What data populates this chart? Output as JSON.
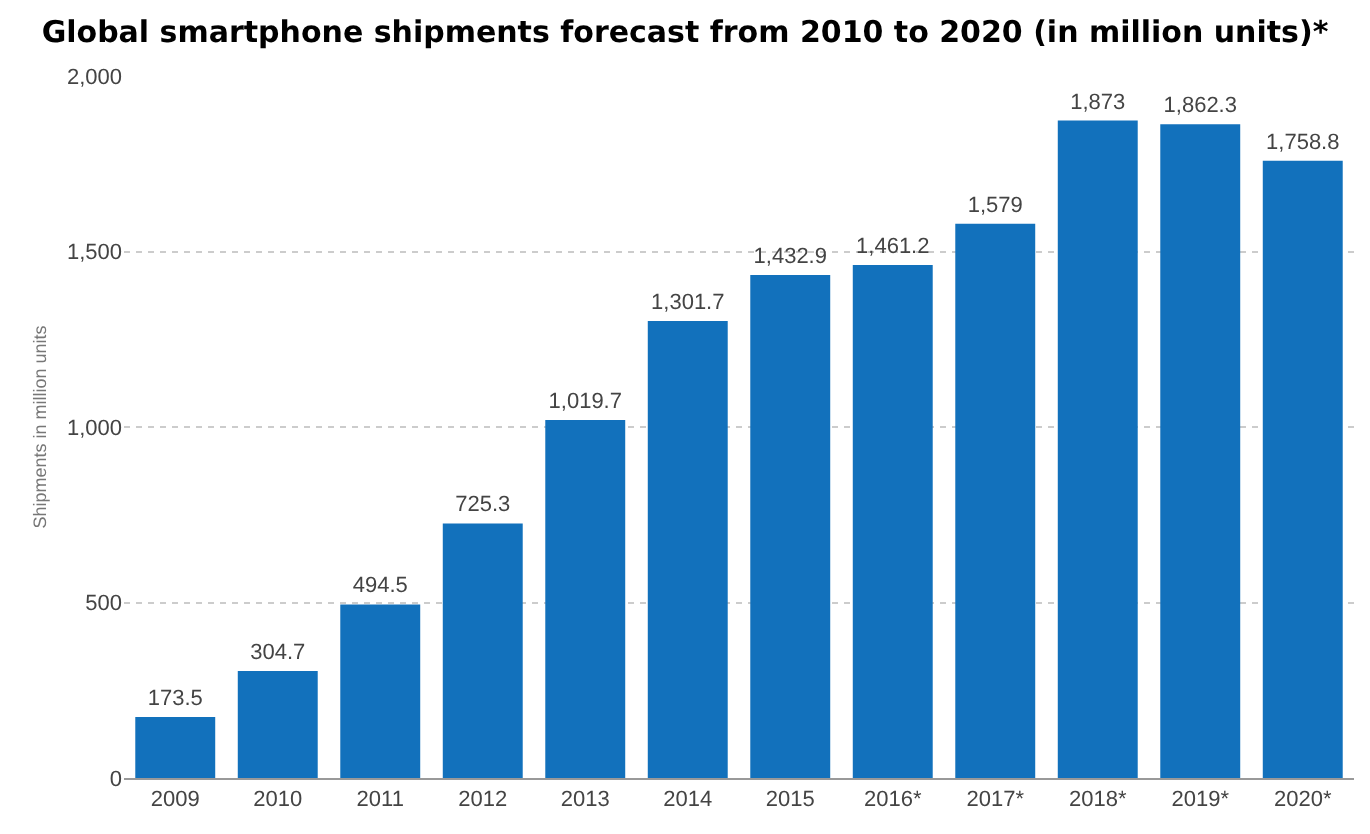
{
  "chart_data": {
    "type": "bar",
    "title": "Global smartphone shipments forecast from 2010 to 2020 (in million units)*",
    "ylabel": "Shipments in million units",
    "categories": [
      "2009",
      "2010",
      "2011",
      "2012",
      "2013",
      "2014",
      "2015",
      "2016*",
      "2017*",
      "2018*",
      "2019*",
      "2020*"
    ],
    "values": [
      173.5,
      304.7,
      494.5,
      725.3,
      1019.7,
      1301.7,
      1432.9,
      1461.2,
      1579,
      1873,
      1862.3,
      1758.8
    ],
    "value_labels": [
      "173.5",
      "304.7",
      "494.5",
      "725.3",
      "1,019.7",
      "1,301.7",
      "1,432.9",
      "1,461.2",
      "1,579",
      "1,873",
      "1,862.3",
      "1,758.8"
    ],
    "color": "#1271bc",
    "ylim": [
      0,
      2000
    ],
    "yticks": [
      {
        "value": 0,
        "label": "0"
      },
      {
        "value": 500,
        "label": "500"
      },
      {
        "value": 1000,
        "label": "1,000"
      },
      {
        "value": 1500,
        "label": "1,500"
      },
      {
        "value": 2000,
        "label": "2,000"
      }
    ],
    "grid": "y"
  }
}
